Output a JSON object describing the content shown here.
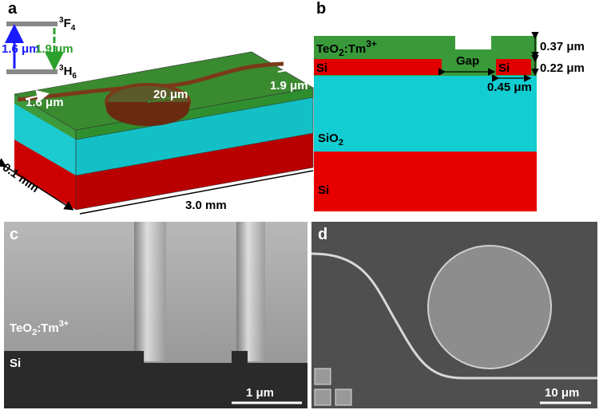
{
  "panel_a": {
    "label": "a",
    "upper_level": [
      "3",
      "F",
      "4"
    ],
    "lower_level": [
      "3",
      "H",
      "6"
    ],
    "pump": "1.6 μm",
    "emission": "1.9 μm",
    "input": "1.6 μm",
    "radius": "20 μm",
    "output": "1.9 μm",
    "width": "0.1 mm",
    "length": "3.0 mm"
  },
  "panel_b": {
    "label": "b",
    "cladding": [
      "TeO",
      "2",
      ":Tm",
      "3+"
    ],
    "si_slab": "Si",
    "gap": "Gap",
    "si_ring": "Si",
    "cladding_thickness": "0.37 μm",
    "si_thickness": "0.22 μm",
    "si_width": "0.45 μm",
    "oxide": [
      "SiO",
      "2"
    ],
    "substrate": "Si"
  },
  "panel_c": {
    "label": "c",
    "cladding": [
      "TeO",
      "2",
      ":Tm",
      "3+"
    ],
    "substrate": "Si",
    "scale": "1 μm"
  },
  "panel_d": {
    "label": "d",
    "scale": "10 μm"
  }
}
